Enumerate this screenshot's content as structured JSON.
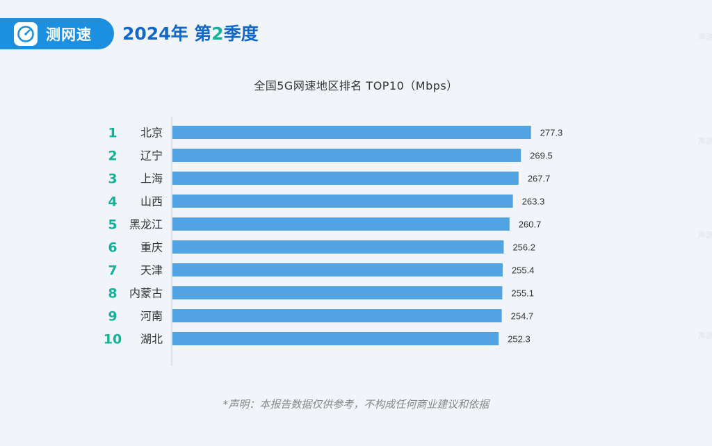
{
  "brand": {
    "name": "测网速",
    "icon": "speedometer-icon"
  },
  "headline": {
    "prefix": "2024年 第",
    "quarter": "2",
    "suffix": "季度"
  },
  "footer": {
    "disclaimer": "*声明：本报告数据仅供参考，不构成任何商业建议和依据"
  },
  "colors": {
    "brand": "#1d8fe0",
    "headline": "#1168c8",
    "rank": "#14b29a",
    "bar": "#52a3e2"
  },
  "chart_data": {
    "type": "bar",
    "orientation": "horizontal",
    "title": "全国5G网速地区排名 TOP10（Mbps）",
    "ranks": [
      "1",
      "2",
      "3",
      "4",
      "5",
      "6",
      "7",
      "8",
      "9",
      "10"
    ],
    "categories": [
      "北京",
      "辽宁",
      "上海",
      "山西",
      "黑龙江",
      "重庆",
      "天津",
      "内蒙古",
      "河南",
      "湖北"
    ],
    "values": [
      277.3,
      269.5,
      267.7,
      263.3,
      260.7,
      256.2,
      255.4,
      255.1,
      254.7,
      252.3
    ],
    "xlim": [
      0,
      285
    ],
    "grid": false,
    "legend": "none"
  }
}
